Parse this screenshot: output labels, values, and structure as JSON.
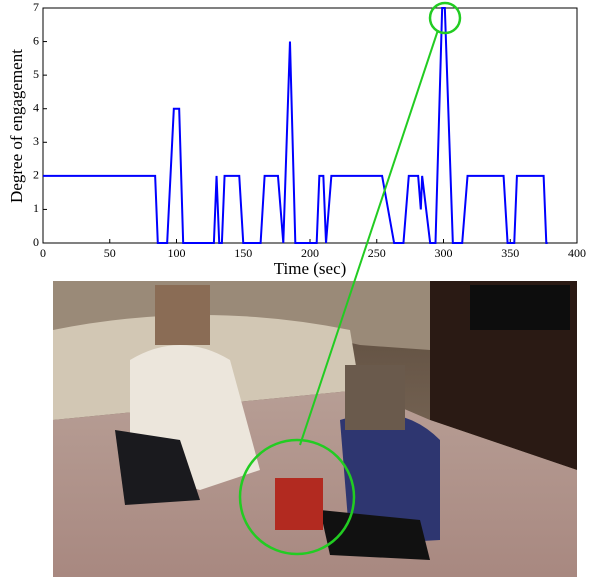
{
  "chart_data": {
    "type": "line",
    "xlabel": "Time (sec)",
    "ylabel": "Degree of engagement",
    "x": [
      0,
      84,
      86,
      93,
      98,
      102,
      105,
      128,
      130,
      132,
      134,
      136,
      147,
      150,
      163,
      166,
      176,
      180,
      185,
      189,
      205,
      207,
      210,
      212,
      216,
      254,
      263,
      270,
      274,
      281,
      283,
      284,
      290,
      294,
      299,
      301,
      307,
      314,
      318,
      345,
      348,
      353,
      355,
      375,
      377,
      378
    ],
    "series": [
      {
        "color": "#0000ff",
        "values": [
          2,
          2,
          0,
          0,
          4,
          4,
          0,
          0,
          2,
          0,
          0,
          2,
          2,
          0,
          0,
          2,
          2,
          0,
          6,
          0,
          0,
          2,
          2,
          0,
          2,
          2,
          0,
          0,
          2,
          2,
          1,
          2,
          0,
          0,
          7,
          7,
          0,
          0,
          2,
          2,
          0,
          0,
          2,
          2,
          0,
          0
        ]
      }
    ],
    "xlim": [
      0,
      400
    ],
    "xticks": [
      0,
      50,
      100,
      150,
      200,
      250,
      300,
      350,
      400
    ],
    "ylim": [
      0,
      7
    ],
    "yticks": [
      0,
      1,
      2,
      3,
      4,
      5,
      6,
      7
    ]
  }
}
